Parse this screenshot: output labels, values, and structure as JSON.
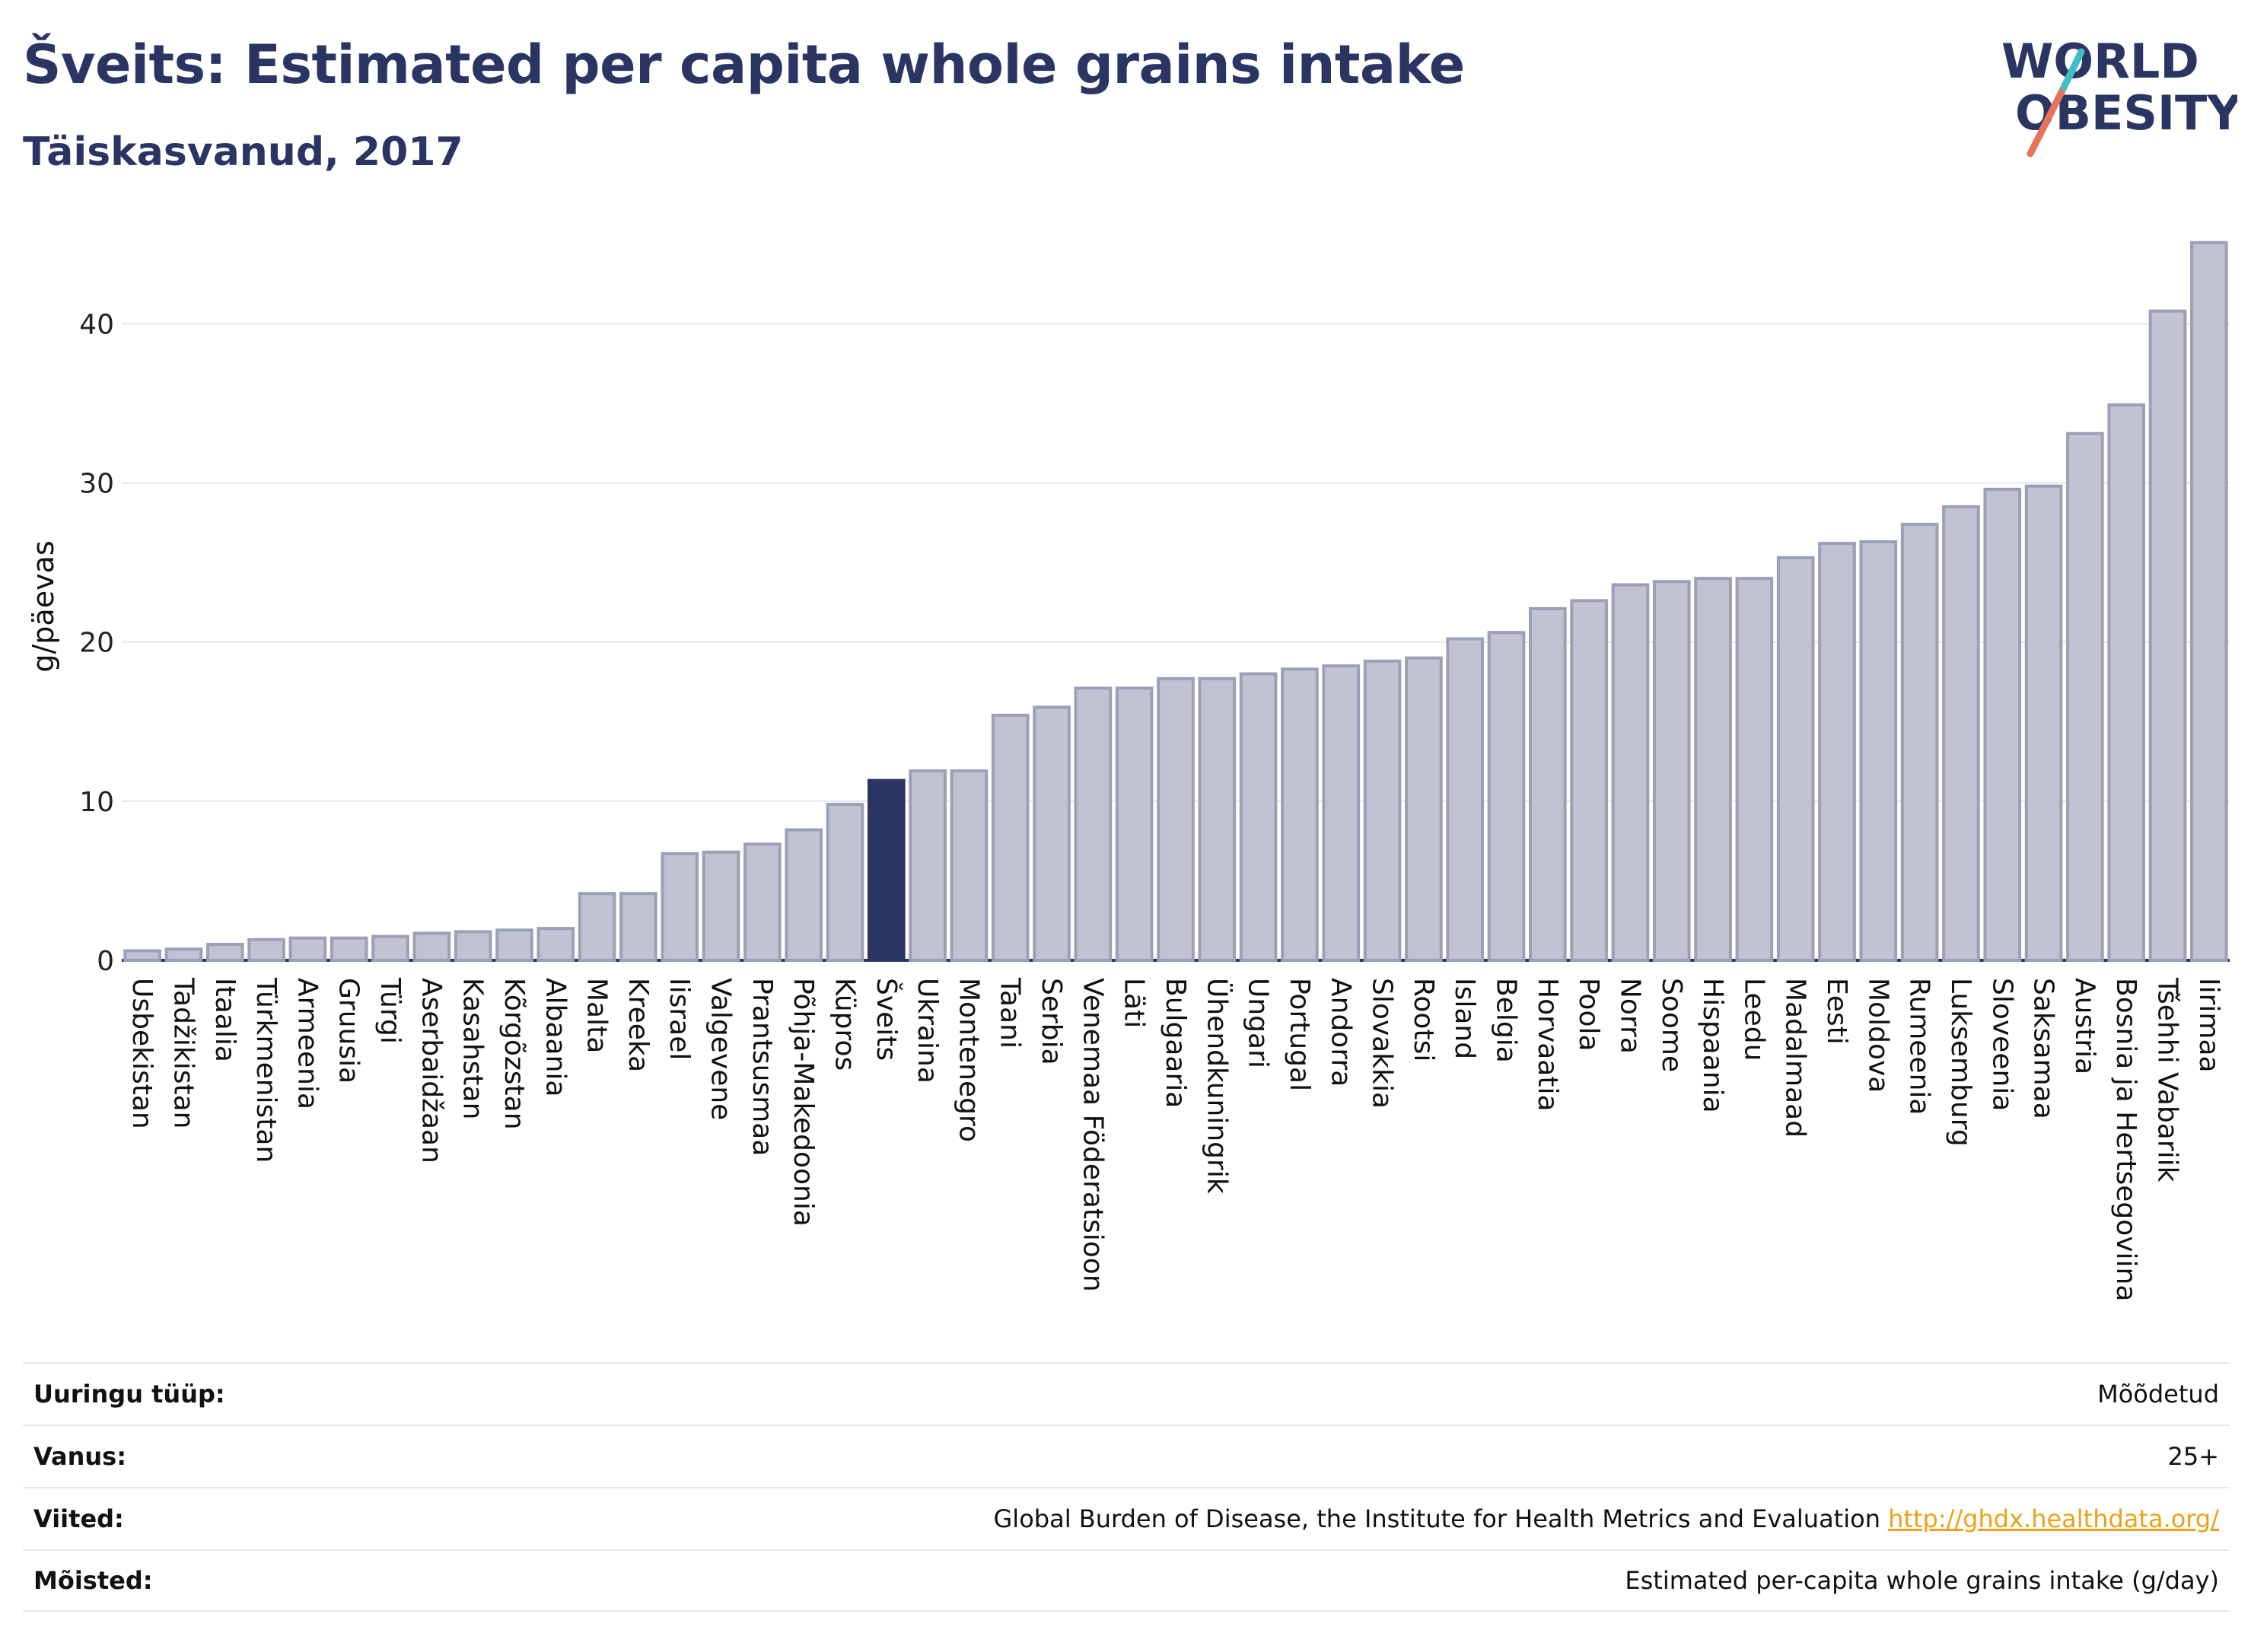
{
  "header": {
    "title": "Šveits: Estimated per capita whole grains intake",
    "subtitle": "Täiskasvanud, 2017"
  },
  "logo": {
    "line1": "WORLD",
    "line2": "OBESITY"
  },
  "colors": {
    "bar": "#bfc3d2",
    "bar_stroke": "#9aa0b8",
    "highlight": "#2b3563",
    "title": "#2b3563"
  },
  "chart_data": {
    "type": "bar",
    "ylabel": "g/päevas",
    "ylim": [
      0,
      46
    ],
    "yticks": [
      0,
      10,
      20,
      30,
      40
    ],
    "highlight": "Šveits",
    "grid": true,
    "categories": [
      "Usbekistan",
      "Tadžikistan",
      "Itaalia",
      "Türkmenistan",
      "Armeenia",
      "Gruusia",
      "Türgi",
      "Aserbaidžaan",
      "Kasahstan",
      "Kõrgõzstan",
      "Albaania",
      "Malta",
      "Kreeka",
      "Iisrael",
      "Valgevene",
      "Prantsusmaa",
      "Põhja-Makedoonia",
      "Küpros",
      "Šveits",
      "Ukraina",
      "Montenegro",
      "Taani",
      "Serbia",
      "Venemaa Föderatsioon",
      "Läti",
      "Bulgaaria",
      "Ühendkuningrik",
      "Ungari",
      "Portugal",
      "Andorra",
      "Slovakkia",
      "Rootsi",
      "Island",
      "Belgia",
      "Horvaatia",
      "Poola",
      "Norra",
      "Soome",
      "Hispaania",
      "Leedu",
      "Madalmaad",
      "Eesti",
      "Moldova",
      "Rumeenia",
      "Luksemburg",
      "Sloveenia",
      "Saksamaa",
      "Austria",
      "Bosnia ja Hertsegoviina",
      "Tšehhi Vabariik",
      "Iirimaa"
    ],
    "values": [
      0.6,
      0.7,
      1.0,
      1.3,
      1.4,
      1.4,
      1.5,
      1.7,
      1.8,
      1.9,
      2.0,
      4.2,
      4.2,
      6.7,
      6.8,
      7.3,
      8.2,
      9.8,
      11.3,
      11.9,
      11.9,
      15.4,
      15.9,
      17.1,
      17.1,
      17.7,
      17.7,
      18.0,
      18.3,
      18.5,
      18.8,
      19.0,
      20.2,
      20.6,
      22.1,
      22.6,
      23.6,
      23.8,
      24.0,
      24.0,
      25.3,
      26.2,
      26.3,
      27.4,
      28.5,
      29.6,
      29.8,
      33.1,
      34.9,
      40.8,
      45.1
    ]
  },
  "info": {
    "rows": [
      {
        "key": "Uuringu tüüp:",
        "value": "Mõõdetud",
        "link": ""
      },
      {
        "key": "Vanus:",
        "value": "25+",
        "link": ""
      },
      {
        "key": "Viited:",
        "value": "Global Burden of Disease, the Institute for Health Metrics and Evaluation",
        "link": "http://ghdx.healthdata.org/"
      },
      {
        "key": "Mõisted:",
        "value": "Estimated per-capita whole grains intake (g/day)",
        "link": ""
      }
    ]
  }
}
